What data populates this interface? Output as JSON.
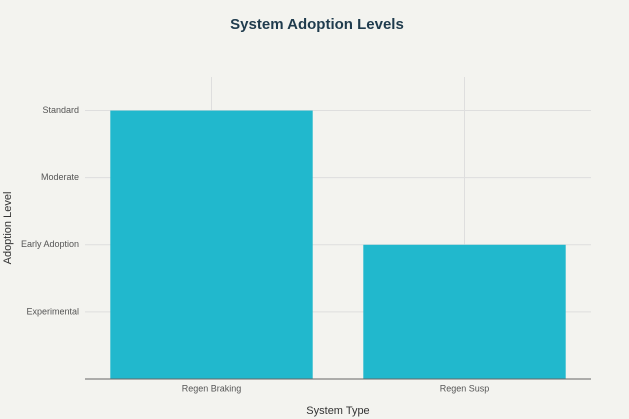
{
  "chart_data": {
    "type": "bar",
    "title": "System Adoption Levels",
    "x_label": "System Type",
    "y_label": "Adoption Level",
    "categories": [
      "Regen Braking",
      "Regen Susp"
    ],
    "values": [
      4,
      2
    ],
    "color": "#21b8cd",
    "ylim": [
      0,
      4.5
    ],
    "yticks": [
      {
        "value": 1,
        "label": "Experimental"
      },
      {
        "value": 2,
        "label": "Early Adoption"
      },
      {
        "value": 3,
        "label": "Moderate"
      },
      {
        "value": 4,
        "label": "Standard"
      }
    ],
    "grid": true
  }
}
